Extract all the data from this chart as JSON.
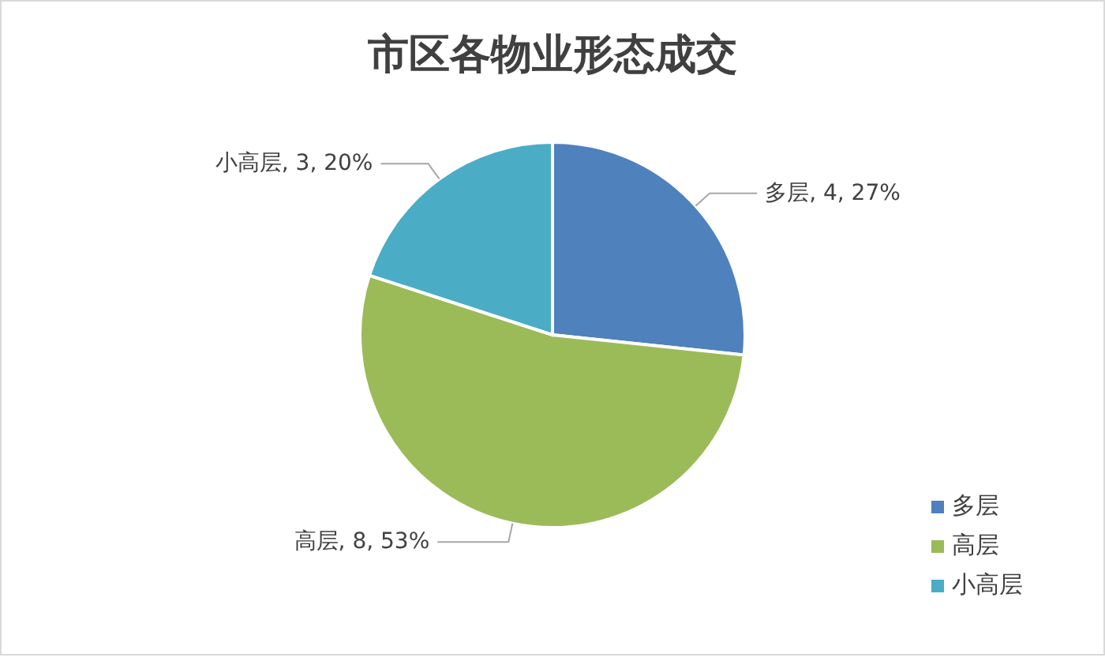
{
  "chart_data": {
    "type": "pie",
    "title": "市区各物业形态成交",
    "categories": [
      "多层",
      "高层",
      "小高层"
    ],
    "values": [
      4,
      8,
      3
    ],
    "colors": [
      "#4f81bd",
      "#9bbb59",
      "#4bacc6"
    ],
    "value_labels": [
      "多层, 4, 27%",
      "高层, 8, 53%",
      "小高层, 3, 20%"
    ],
    "legend": "bottom right"
  }
}
